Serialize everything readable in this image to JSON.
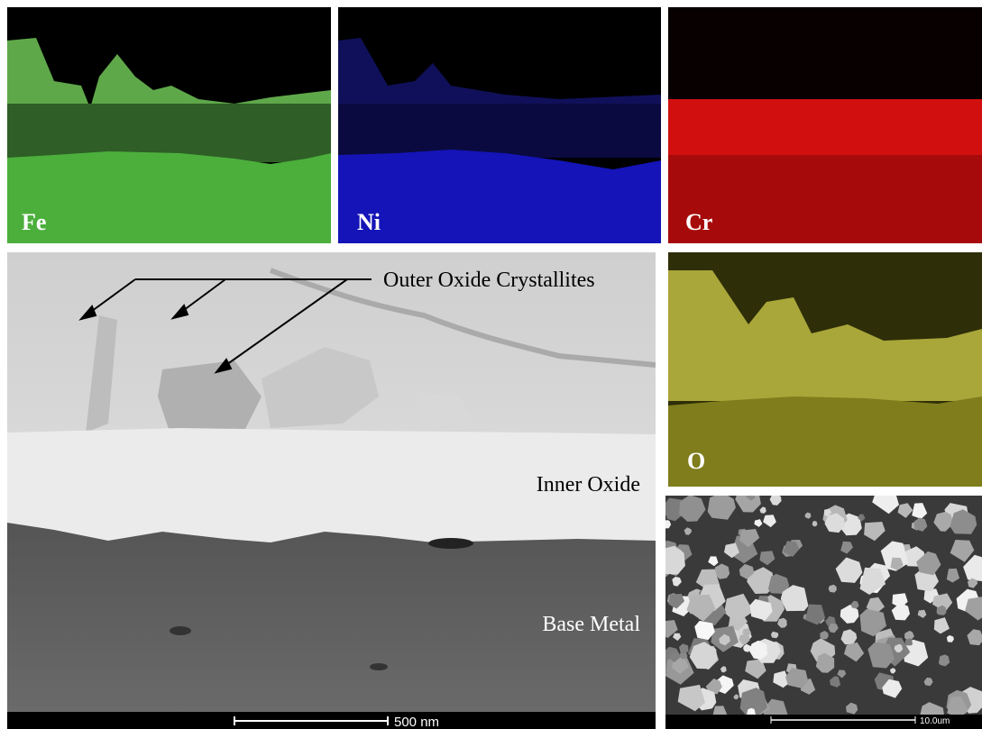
{
  "maps": [
    {
      "label": "Fe"
    },
    {
      "label": "Ni"
    },
    {
      "label": "Cr"
    },
    {
      "label": "O"
    }
  ],
  "cross_section": {
    "labels": [
      "Outer Oxide Crystallites",
      "Inner Oxide",
      "Base Metal"
    ],
    "scale_bar": "500 nm"
  },
  "surface": {
    "scale_bar": "10.0um"
  }
}
